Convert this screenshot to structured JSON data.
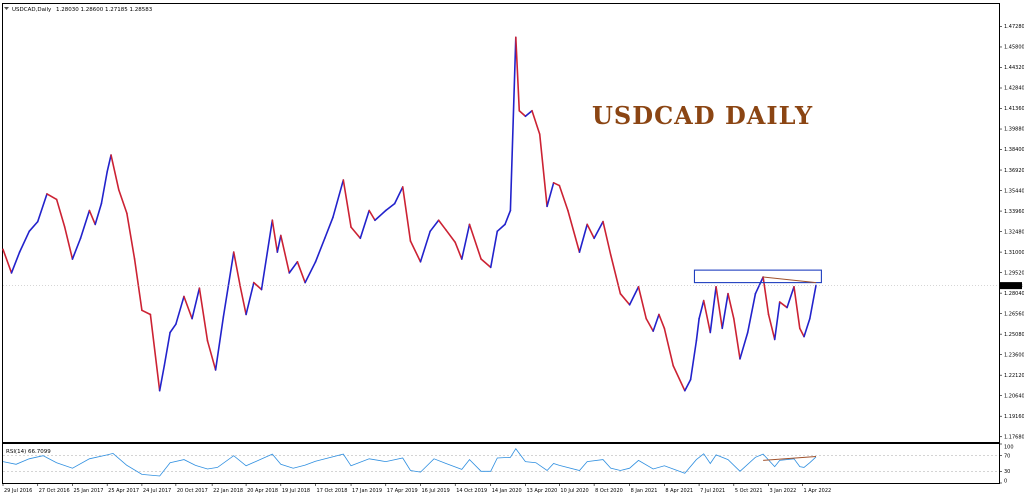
{
  "chart_data": {
    "type": "line",
    "header": {
      "symbol": "USDCAD,Daily",
      "ohlc": "1.28030 1.28600 1.27185 1.28583"
    },
    "title": "USDCAD DAILY",
    "price_axis": {
      "ylim": [
        1.173,
        1.489
      ],
      "ticks": [
        "1.47280",
        "1.45800",
        "1.44320",
        "1.42840",
        "1.41360",
        "1.39880",
        "1.38400",
        "1.36920",
        "1.35440",
        "1.33960",
        "1.32480",
        "1.31000",
        "1.29520",
        "1.28040",
        "1.26560",
        "1.25080",
        "1.23600",
        "1.22120",
        "1.20640",
        "1.19160",
        "1.17680"
      ],
      "current_price": "1.28583"
    },
    "rsi_panel": {
      "label": "RSI(14) 66.7099",
      "ylim": [
        0,
        100
      ],
      "ticks": [
        "100",
        "70",
        "30",
        "0"
      ],
      "levels": [
        70,
        30
      ]
    },
    "x_axis": {
      "start": "2016-07-29",
      "end": "2022-05-06",
      "ticks": [
        {
          "label": "29 Jul 2016",
          "date": "2016-07-29"
        },
        {
          "label": "27 Oct 2016",
          "date": "2016-10-27"
        },
        {
          "label": "25 Jan 2017",
          "date": "2017-01-25"
        },
        {
          "label": "25 Apr 2017",
          "date": "2017-04-25"
        },
        {
          "label": "24 Jul 2017",
          "date": "2017-07-24"
        },
        {
          "label": "20 Oct 2017",
          "date": "2017-10-20"
        },
        {
          "label": "22 Jan 2018",
          "date": "2018-01-22"
        },
        {
          "label": "20 Apr 2018",
          "date": "2018-04-20"
        },
        {
          "label": "19 Jul 2018",
          "date": "2018-07-19"
        },
        {
          "label": "17 Oct 2018",
          "date": "2018-10-17"
        },
        {
          "label": "17 Jan 2019",
          "date": "2019-01-17"
        },
        {
          "label": "17 Apr 2019",
          "date": "2019-04-17"
        },
        {
          "label": "16 Jul 2019",
          "date": "2019-07-16"
        },
        {
          "label": "14 Oct 2019",
          "date": "2019-10-14"
        },
        {
          "label": "14 Jan 2020",
          "date": "2020-01-14"
        },
        {
          "label": "13 Apr 2020",
          "date": "2020-04-13"
        },
        {
          "label": "10 Jul 2020",
          "date": "2020-07-10"
        },
        {
          "label": "8 Oct 2020",
          "date": "2020-10-08"
        },
        {
          "label": "8 Jan 2021",
          "date": "2021-01-08"
        },
        {
          "label": "8 Apr 2021",
          "date": "2021-04-08"
        },
        {
          "label": "7 Jul 2021",
          "date": "2021-07-07"
        },
        {
          "label": "5 Oct 2021",
          "date": "2021-10-05"
        },
        {
          "label": "3 Jan 2022",
          "date": "2022-01-03"
        },
        {
          "label": "1 Apr 2022",
          "date": "2022-04-01"
        }
      ]
    },
    "price_series": [
      [
        "2016-07-29",
        1.312
      ],
      [
        "2016-08-20",
        1.295
      ],
      [
        "2016-09-10",
        1.31
      ],
      [
        "2016-10-05",
        1.325
      ],
      [
        "2016-10-27",
        1.332
      ],
      [
        "2016-11-20",
        1.352
      ],
      [
        "2016-12-15",
        1.348
      ],
      [
        "2017-01-05",
        1.328
      ],
      [
        "2017-01-25",
        1.305
      ],
      [
        "2017-02-15",
        1.32
      ],
      [
        "2017-03-10",
        1.34
      ],
      [
        "2017-03-25",
        1.33
      ],
      [
        "2017-04-10",
        1.345
      ],
      [
        "2017-04-25",
        1.368
      ],
      [
        "2017-05-05",
        1.38
      ],
      [
        "2017-05-25",
        1.355
      ],
      [
        "2017-06-15",
        1.338
      ],
      [
        "2017-07-05",
        1.305
      ],
      [
        "2017-07-24",
        1.268
      ],
      [
        "2017-08-15",
        1.265
      ],
      [
        "2017-09-08",
        1.21
      ],
      [
        "2017-09-20",
        1.228
      ],
      [
        "2017-10-05",
        1.252
      ],
      [
        "2017-10-20",
        1.258
      ],
      [
        "2017-11-10",
        1.278
      ],
      [
        "2017-12-01",
        1.262
      ],
      [
        "2017-12-20",
        1.284
      ],
      [
        "2018-01-10",
        1.246
      ],
      [
        "2018-01-31",
        1.225
      ],
      [
        "2018-02-20",
        1.263
      ],
      [
        "2018-03-19",
        1.31
      ],
      [
        "2018-04-05",
        1.285
      ],
      [
        "2018-04-20",
        1.265
      ],
      [
        "2018-05-10",
        1.288
      ],
      [
        "2018-05-30",
        1.283
      ],
      [
        "2018-06-27",
        1.333
      ],
      [
        "2018-07-10",
        1.31
      ],
      [
        "2018-07-19",
        1.322
      ],
      [
        "2018-08-10",
        1.295
      ],
      [
        "2018-08-31",
        1.303
      ],
      [
        "2018-09-20",
        1.288
      ],
      [
        "2018-10-17",
        1.303
      ],
      [
        "2018-11-10",
        1.32
      ],
      [
        "2018-12-01",
        1.335
      ],
      [
        "2018-12-28",
        1.362
      ],
      [
        "2019-01-17",
        1.328
      ],
      [
        "2019-02-10",
        1.32
      ],
      [
        "2019-03-05",
        1.34
      ],
      [
        "2019-03-20",
        1.333
      ],
      [
        "2019-04-17",
        1.34
      ],
      [
        "2019-05-10",
        1.345
      ],
      [
        "2019-05-31",
        1.357
      ],
      [
        "2019-06-20",
        1.318
      ],
      [
        "2019-07-16",
        1.303
      ],
      [
        "2019-08-10",
        1.325
      ],
      [
        "2019-09-01",
        1.333
      ],
      [
        "2019-09-20",
        1.326
      ],
      [
        "2019-10-14",
        1.317
      ],
      [
        "2019-10-31",
        1.305
      ],
      [
        "2019-11-20",
        1.33
      ],
      [
        "2019-12-20",
        1.305
      ],
      [
        "2020-01-14",
        1.299
      ],
      [
        "2020-01-31",
        1.325
      ],
      [
        "2020-02-20",
        1.33
      ],
      [
        "2020-03-05",
        1.34
      ],
      [
        "2020-03-19",
        1.465
      ],
      [
        "2020-03-28",
        1.412
      ],
      [
        "2020-04-13",
        1.408
      ],
      [
        "2020-04-30",
        1.412
      ],
      [
        "2020-05-20",
        1.395
      ],
      [
        "2020-06-08",
        1.343
      ],
      [
        "2020-06-25",
        1.36
      ],
      [
        "2020-07-10",
        1.358
      ],
      [
        "2020-08-01",
        1.34
      ],
      [
        "2020-08-31",
        1.31
      ],
      [
        "2020-09-20",
        1.33
      ],
      [
        "2020-10-08",
        1.32
      ],
      [
        "2020-10-31",
        1.332
      ],
      [
        "2020-11-20",
        1.308
      ],
      [
        "2020-12-15",
        1.28
      ],
      [
        "2021-01-08",
        1.272
      ],
      [
        "2021-01-31",
        1.285
      ],
      [
        "2021-02-20",
        1.262
      ],
      [
        "2021-03-10",
        1.253
      ],
      [
        "2021-03-25",
        1.265
      ],
      [
        "2021-04-08",
        1.255
      ],
      [
        "2021-05-01",
        1.228
      ],
      [
        "2021-05-31",
        1.21
      ],
      [
        "2021-06-15",
        1.218
      ],
      [
        "2021-06-30",
        1.246
      ],
      [
        "2021-07-07",
        1.262
      ],
      [
        "2021-07-19",
        1.275
      ],
      [
        "2021-08-05",
        1.252
      ],
      [
        "2021-08-20",
        1.285
      ],
      [
        "2021-09-05",
        1.255
      ],
      [
        "2021-09-20",
        1.28
      ],
      [
        "2021-10-05",
        1.262
      ],
      [
        "2021-10-21",
        1.233
      ],
      [
        "2021-11-10",
        1.252
      ],
      [
        "2021-11-30",
        1.28
      ],
      [
        "2021-12-20",
        1.292
      ],
      [
        "2022-01-03",
        1.265
      ],
      [
        "2022-01-19",
        1.247
      ],
      [
        "2022-02-01",
        1.274
      ],
      [
        "2022-02-20",
        1.27
      ],
      [
        "2022-03-10",
        1.285
      ],
      [
        "2022-03-25",
        1.255
      ],
      [
        "2022-04-05",
        1.249
      ],
      [
        "2022-04-20",
        1.262
      ],
      [
        "2022-05-06",
        1.286
      ]
    ],
    "rsi_series": [
      [
        "2016-07-29",
        55
      ],
      [
        "2016-09-01",
        48
      ],
      [
        "2016-10-05",
        62
      ],
      [
        "2016-11-10",
        70
      ],
      [
        "2016-12-15",
        52
      ],
      [
        "2017-01-25",
        38
      ],
      [
        "2017-03-10",
        62
      ],
      [
        "2017-04-25",
        72
      ],
      [
        "2017-05-10",
        76
      ],
      [
        "2017-06-15",
        45
      ],
      [
        "2017-07-24",
        22
      ],
      [
        "2017-09-08",
        18
      ],
      [
        "2017-10-05",
        52
      ],
      [
        "2017-11-10",
        60
      ],
      [
        "2017-12-10",
        45
      ],
      [
        "2018-01-10",
        36
      ],
      [
        "2018-02-05",
        40
      ],
      [
        "2018-03-19",
        70
      ],
      [
        "2018-04-20",
        44
      ],
      [
        "2018-06-27",
        74
      ],
      [
        "2018-07-19",
        48
      ],
      [
        "2018-08-20",
        38
      ],
      [
        "2018-09-20",
        46
      ],
      [
        "2018-10-17",
        56
      ],
      [
        "2018-12-28",
        74
      ],
      [
        "2019-01-17",
        44
      ],
      [
        "2019-03-05",
        62
      ],
      [
        "2019-04-17",
        55
      ],
      [
        "2019-05-31",
        64
      ],
      [
        "2019-06-20",
        32
      ],
      [
        "2019-07-16",
        28
      ],
      [
        "2019-08-20",
        62
      ],
      [
        "2019-09-20",
        50
      ],
      [
        "2019-10-31",
        35
      ],
      [
        "2019-11-20",
        60
      ],
      [
        "2019-12-20",
        30
      ],
      [
        "2020-01-14",
        30
      ],
      [
        "2020-01-31",
        64
      ],
      [
        "2020-03-05",
        66
      ],
      [
        "2020-03-19",
        88
      ],
      [
        "2020-04-13",
        55
      ],
      [
        "2020-05-10",
        52
      ],
      [
        "2020-06-08",
        32
      ],
      [
        "2020-06-25",
        50
      ],
      [
        "2020-07-10",
        45
      ],
      [
        "2020-08-31",
        32
      ],
      [
        "2020-09-20",
        55
      ],
      [
        "2020-10-31",
        60
      ],
      [
        "2020-11-20",
        38
      ],
      [
        "2020-12-15",
        32
      ],
      [
        "2021-01-08",
        38
      ],
      [
        "2021-01-31",
        58
      ],
      [
        "2021-03-10",
        36
      ],
      [
        "2021-04-08",
        44
      ],
      [
        "2021-05-31",
        25
      ],
      [
        "2021-06-30",
        60
      ],
      [
        "2021-07-19",
        75
      ],
      [
        "2021-08-05",
        50
      ],
      [
        "2021-08-20",
        72
      ],
      [
        "2021-09-20",
        60
      ],
      [
        "2021-10-21",
        30
      ],
      [
        "2021-11-30",
        66
      ],
      [
        "2021-12-20",
        74
      ],
      [
        "2022-01-19",
        42
      ],
      [
        "2022-02-01",
        58
      ],
      [
        "2022-03-10",
        62
      ],
      [
        "2022-03-25",
        42
      ],
      [
        "2022-04-05",
        40
      ],
      [
        "2022-04-20",
        52
      ],
      [
        "2022-05-06",
        67
      ]
    ],
    "annotations": {
      "resistance_box": {
        "x0": "2021-06-25",
        "x1": "2022-05-20",
        "y0": 1.288,
        "y1": 1.297
      },
      "price_trendline": [
        [
          "2021-12-20",
          1.292
        ],
        [
          "2022-05-06",
          1.288
        ]
      ],
      "rsi_trendline": [
        [
          "2021-12-20",
          58
        ],
        [
          "2022-05-06",
          68
        ]
      ]
    }
  }
}
